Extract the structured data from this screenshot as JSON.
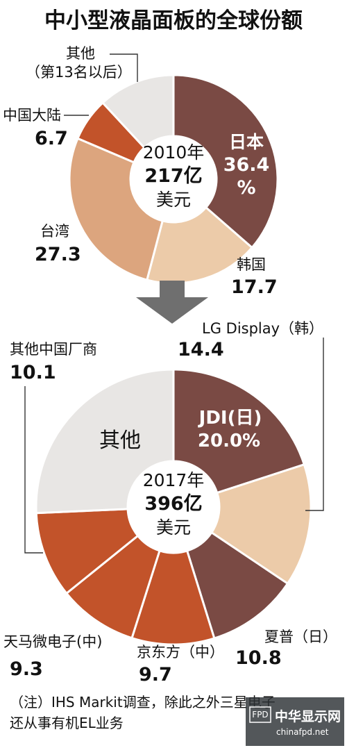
{
  "title": "中小型液晶面板的全球份额",
  "colors": {
    "dark": "#7a4a44",
    "orange": "#c2532a",
    "tan": "#dca57e",
    "light_tan": "#eccba9",
    "gray": "#e8e6e4",
    "arrow": "#6f6f6f",
    "line": "#333333"
  },
  "chart_data": [
    {
      "type": "pie",
      "center_lines": [
        "2010年",
        "217亿",
        "美元"
      ],
      "categories": [
        "日本",
        "韩国",
        "台湾",
        "中国大陆",
        "其他"
      ],
      "values": [
        36.4,
        17.7,
        27.3,
        6.7,
        11.9
      ],
      "labels": [
        {
          "name": "日本",
          "value": "36.4",
          "unit": "%"
        },
        {
          "name": "韩国",
          "value": "17.7"
        },
        {
          "name": "台湾",
          "value": "27.3"
        },
        {
          "name": "中国大陆",
          "value": "6.7"
        },
        {
          "name": "其他",
          "note": "（第13名以后）"
        }
      ]
    },
    {
      "type": "pie",
      "center_lines": [
        "2017年",
        "396亿",
        "美元"
      ],
      "categories": [
        "JDI(日)",
        "LG Display（韩）",
        "夏普（日）",
        "京东方（中）",
        "天马微电子(中)",
        "其他中国厂商",
        "其他"
      ],
      "values": [
        20.0,
        14.4,
        10.8,
        9.7,
        9.3,
        10.1,
        25.7
      ],
      "labels": [
        {
          "name": "JDI(日)",
          "value": "20.0%"
        },
        {
          "name": "LG Display（韩）",
          "value": "14.4"
        },
        {
          "name": "夏普（日）",
          "value": "10.8"
        },
        {
          "name": "京东方（中）",
          "value": "9.7"
        },
        {
          "name": "天马微电子(中)",
          "value": "9.3"
        },
        {
          "name": "其他中国厂商",
          "value": "10.1"
        },
        {
          "name": "其他"
        }
      ]
    }
  ],
  "note": "（注）IHS Markit调查，除此之外三星电子还从事有机EL业务",
  "note_lines": [
    "（注）IHS Markit调查，除此之外三星电子",
    "还从事有机EL业务"
  ],
  "watermark": {
    "logo": "中华显示网",
    "url": "chinafpd.net",
    "badge": "FPD"
  }
}
